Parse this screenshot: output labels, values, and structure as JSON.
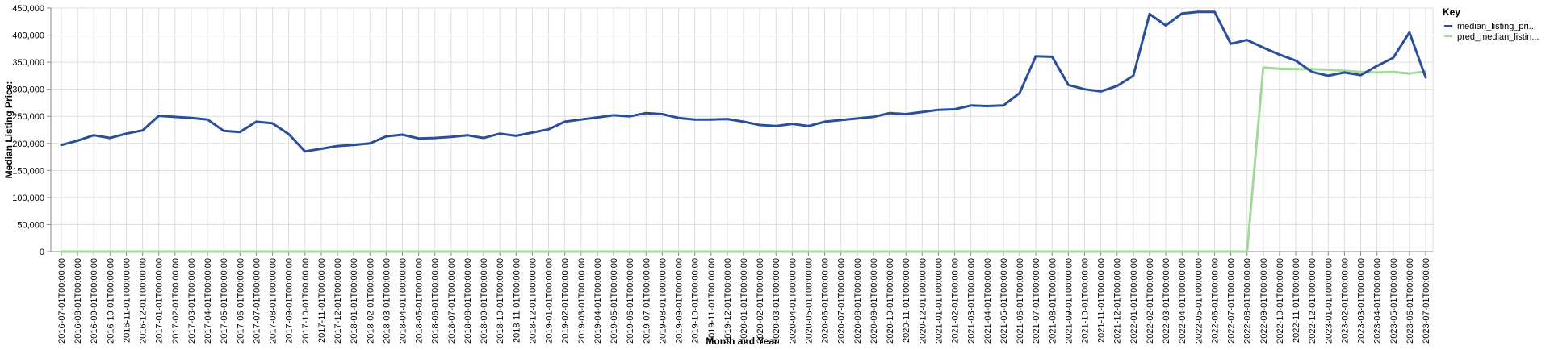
{
  "chart_data": {
    "type": "line",
    "xlabel": "Month and Year",
    "ylabel": "Median Listing Price:",
    "ylim": [
      0,
      450000
    ],
    "yticks": [
      0,
      50000,
      100000,
      150000,
      200000,
      250000,
      300000,
      350000,
      400000,
      450000
    ],
    "ytick_labels": [
      "0",
      "50,000",
      "100,000",
      "150,000",
      "200,000",
      "250,000",
      "300,000",
      "350,000",
      "400,000",
      "450,000"
    ],
    "grid": true,
    "legend": {
      "title": "Key",
      "placement": "right"
    },
    "x": [
      "2016-07-01T00:00:00",
      "2016-08-01T00:00:00",
      "2016-09-01T00:00:00",
      "2016-10-01T00:00:00",
      "2016-11-01T00:00:00",
      "2016-12-01T00:00:00",
      "2017-01-01T00:00:00",
      "2017-02-01T00:00:00",
      "2017-03-01T00:00:00",
      "2017-04-01T00:00:00",
      "2017-05-01T00:00:00",
      "2017-06-01T00:00:00",
      "2017-07-01T00:00:00",
      "2017-08-01T00:00:00",
      "2017-09-01T00:00:00",
      "2017-10-01T00:00:00",
      "2017-11-01T00:00:00",
      "2017-12-01T00:00:00",
      "2018-01-01T00:00:00",
      "2018-02-01T00:00:00",
      "2018-03-01T00:00:00",
      "2018-04-01T00:00:00",
      "2018-05-01T00:00:00",
      "2018-06-01T00:00:00",
      "2018-07-01T00:00:00",
      "2018-08-01T00:00:00",
      "2018-09-01T00:00:00",
      "2018-10-01T00:00:00",
      "2018-11-01T00:00:00",
      "2018-12-01T00:00:00",
      "2019-01-01T00:00:00",
      "2019-02-01T00:00:00",
      "2019-03-01T00:00:00",
      "2019-04-01T00:00:00",
      "2019-05-01T00:00:00",
      "2019-06-01T00:00:00",
      "2019-07-01T00:00:00",
      "2019-08-01T00:00:00",
      "2019-09-01T00:00:00",
      "2019-10-01T00:00:00",
      "2019-11-01T00:00:00",
      "2019-12-01T00:00:00",
      "2020-01-01T00:00:00",
      "2020-02-01T00:00:00",
      "2020-03-01T00:00:00",
      "2020-04-01T00:00:00",
      "2020-05-01T00:00:00",
      "2020-06-01T00:00:00",
      "2020-07-01T00:00:00",
      "2020-08-01T00:00:00",
      "2020-09-01T00:00:00",
      "2020-10-01T00:00:00",
      "2020-11-01T00:00:00",
      "2020-12-01T00:00:00",
      "2021-01-01T00:00:00",
      "2021-02-01T00:00:00",
      "2021-03-01T00:00:00",
      "2021-04-01T00:00:00",
      "2021-05-01T00:00:00",
      "2021-06-01T00:00:00",
      "2021-07-01T00:00:00",
      "2021-08-01T00:00:00",
      "2021-09-01T00:00:00",
      "2021-10-01T00:00:00",
      "2021-11-01T00:00:00",
      "2021-12-01T00:00:00",
      "2022-01-01T00:00:00",
      "2022-02-01T00:00:00",
      "2022-03-01T00:00:00",
      "2022-04-01T00:00:00",
      "2022-05-01T00:00:00",
      "2022-06-01T00:00:00",
      "2022-07-01T00:00:00",
      "2022-08-01T00:00:00",
      "2022-09-01T00:00:00",
      "2022-10-01T00:00:00",
      "2022-11-01T00:00:00",
      "2022-12-01T00:00:00",
      "2023-01-01T00:00:00",
      "2023-02-01T00:00:00",
      "2023-03-01T00:00:00",
      "2023-04-01T00:00:00",
      "2023-05-01T00:00:00",
      "2023-06-01T00:00:00",
      "2023-07-01T00:00:00"
    ],
    "series": [
      {
        "name": "median_listing_pri...",
        "color": "#2a4f9a",
        "values": [
          197000,
          205000,
          215000,
          210000,
          218000,
          224000,
          251000,
          249000,
          247000,
          244000,
          223000,
          221000,
          240000,
          237000,
          217000,
          185000,
          190000,
          195000,
          197000,
          200000,
          213000,
          216000,
          209000,
          210000,
          212000,
          215000,
          210000,
          218000,
          214000,
          220000,
          226000,
          240000,
          244000,
          248000,
          252000,
          250000,
          256000,
          254000,
          247000,
          244000,
          244000,
          245000,
          240000,
          234000,
          232000,
          236000,
          232000,
          240000,
          243000,
          246000,
          249000,
          256000,
          254000,
          258000,
          262000,
          263000,
          270000,
          269000,
          270000,
          293000,
          361000,
          360000,
          308000,
          300000,
          296000,
          306000,
          325000,
          439000,
          418000,
          440000,
          443000,
          443000,
          384000,
          391000,
          377000,
          364000,
          353000,
          332000,
          325000,
          331000,
          326000,
          343000,
          358000,
          405000,
          322000
        ]
      },
      {
        "name": "pred_median_listin...",
        "color": "#a3d99b",
        "values": [
          0,
          0,
          0,
          0,
          0,
          0,
          0,
          0,
          0,
          0,
          0,
          0,
          0,
          0,
          0,
          0,
          0,
          0,
          0,
          0,
          0,
          0,
          0,
          0,
          0,
          0,
          0,
          0,
          0,
          0,
          0,
          0,
          0,
          0,
          0,
          0,
          0,
          0,
          0,
          0,
          0,
          0,
          0,
          0,
          0,
          0,
          0,
          0,
          0,
          0,
          0,
          0,
          0,
          0,
          0,
          0,
          0,
          0,
          0,
          0,
          0,
          0,
          0,
          0,
          0,
          0,
          0,
          0,
          0,
          0,
          0,
          0,
          0,
          0,
          340000,
          338000,
          337000,
          337000,
          336000,
          334000,
          332000,
          331000,
          332000,
          329000,
          333000
        ]
      }
    ]
  }
}
